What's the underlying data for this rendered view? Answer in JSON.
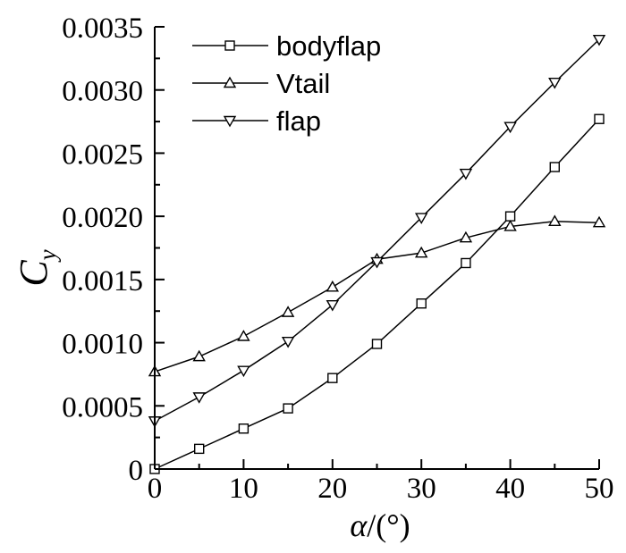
{
  "chart_data": {
    "type": "line",
    "x": [
      0,
      5,
      10,
      15,
      20,
      25,
      30,
      35,
      40,
      45,
      50
    ],
    "xlim": [
      0,
      50
    ],
    "ylim": [
      0,
      0.0035
    ],
    "xticks": [
      "0",
      "10",
      "20",
      "30",
      "40",
      "50"
    ],
    "yticks": [
      "0",
      "0.0005",
      "0.0010",
      "0.0015",
      "0.0020",
      "0.0025",
      "0.0030",
      "0.0035"
    ],
    "xlabel": {
      "symbol": "α",
      "rest": "/(°)"
    },
    "ylabel": {
      "main": "C",
      "sub": "y"
    },
    "legend_position": "top-left",
    "series": [
      {
        "name": "bodyflap",
        "marker": "square",
        "values": [
          0.0,
          0.00016,
          0.00032,
          0.00048,
          0.00072,
          0.00099,
          0.00131,
          0.00163,
          0.002,
          0.00239,
          0.00277
        ]
      },
      {
        "name": "Vtail",
        "marker": "triangle-up",
        "values": [
          0.00077,
          0.00089,
          0.00105,
          0.00124,
          0.00144,
          0.00166,
          0.00171,
          0.00183,
          0.00192,
          0.00196,
          0.00195
        ]
      },
      {
        "name": "flap",
        "marker": "triangle-down",
        "values": [
          0.00038,
          0.00057,
          0.00078,
          0.00101,
          0.0013,
          0.00164,
          0.00199,
          0.00234,
          0.00271,
          0.00306,
          0.0034
        ]
      }
    ]
  }
}
